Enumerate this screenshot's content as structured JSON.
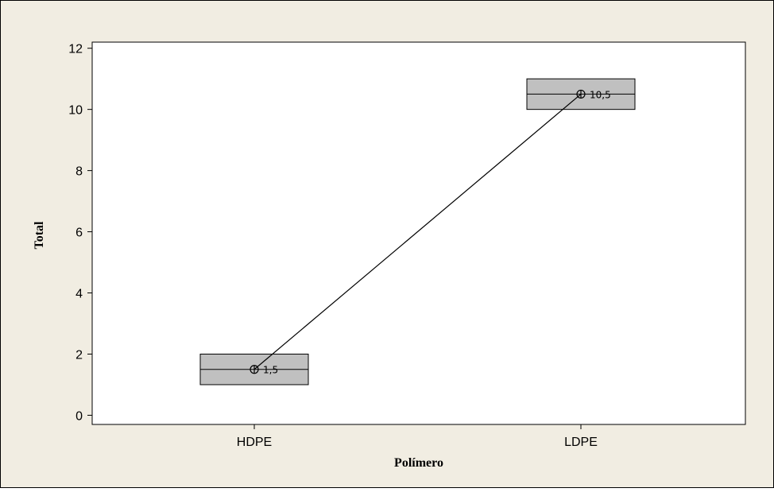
{
  "colors": {
    "outer_background": "#f1ede2",
    "plot_background": "#ffffff",
    "box_fill": "#c0c0c0",
    "line": "#000000"
  },
  "chart_data": {
    "type": "box",
    "title": "",
    "xlabel": "Polímero",
    "ylabel": "Total",
    "ylim": [
      -0.3,
      12.2
    ],
    "yticks": [
      0,
      2,
      4,
      6,
      8,
      10,
      12
    ],
    "grid": false,
    "legend": "none",
    "categories": [
      "HDPE",
      "LDPE"
    ],
    "boxes": [
      {
        "category": "HDPE",
        "q1": 1.0,
        "median": 1.5,
        "q3": 2.0
      },
      {
        "category": "LDPE",
        "q1": 10.0,
        "median": 10.5,
        "q3": 11.0
      }
    ],
    "means": [
      1.5,
      10.5
    ],
    "mean_labels": [
      "1,5",
      "10,5"
    ],
    "connect_means": true
  }
}
